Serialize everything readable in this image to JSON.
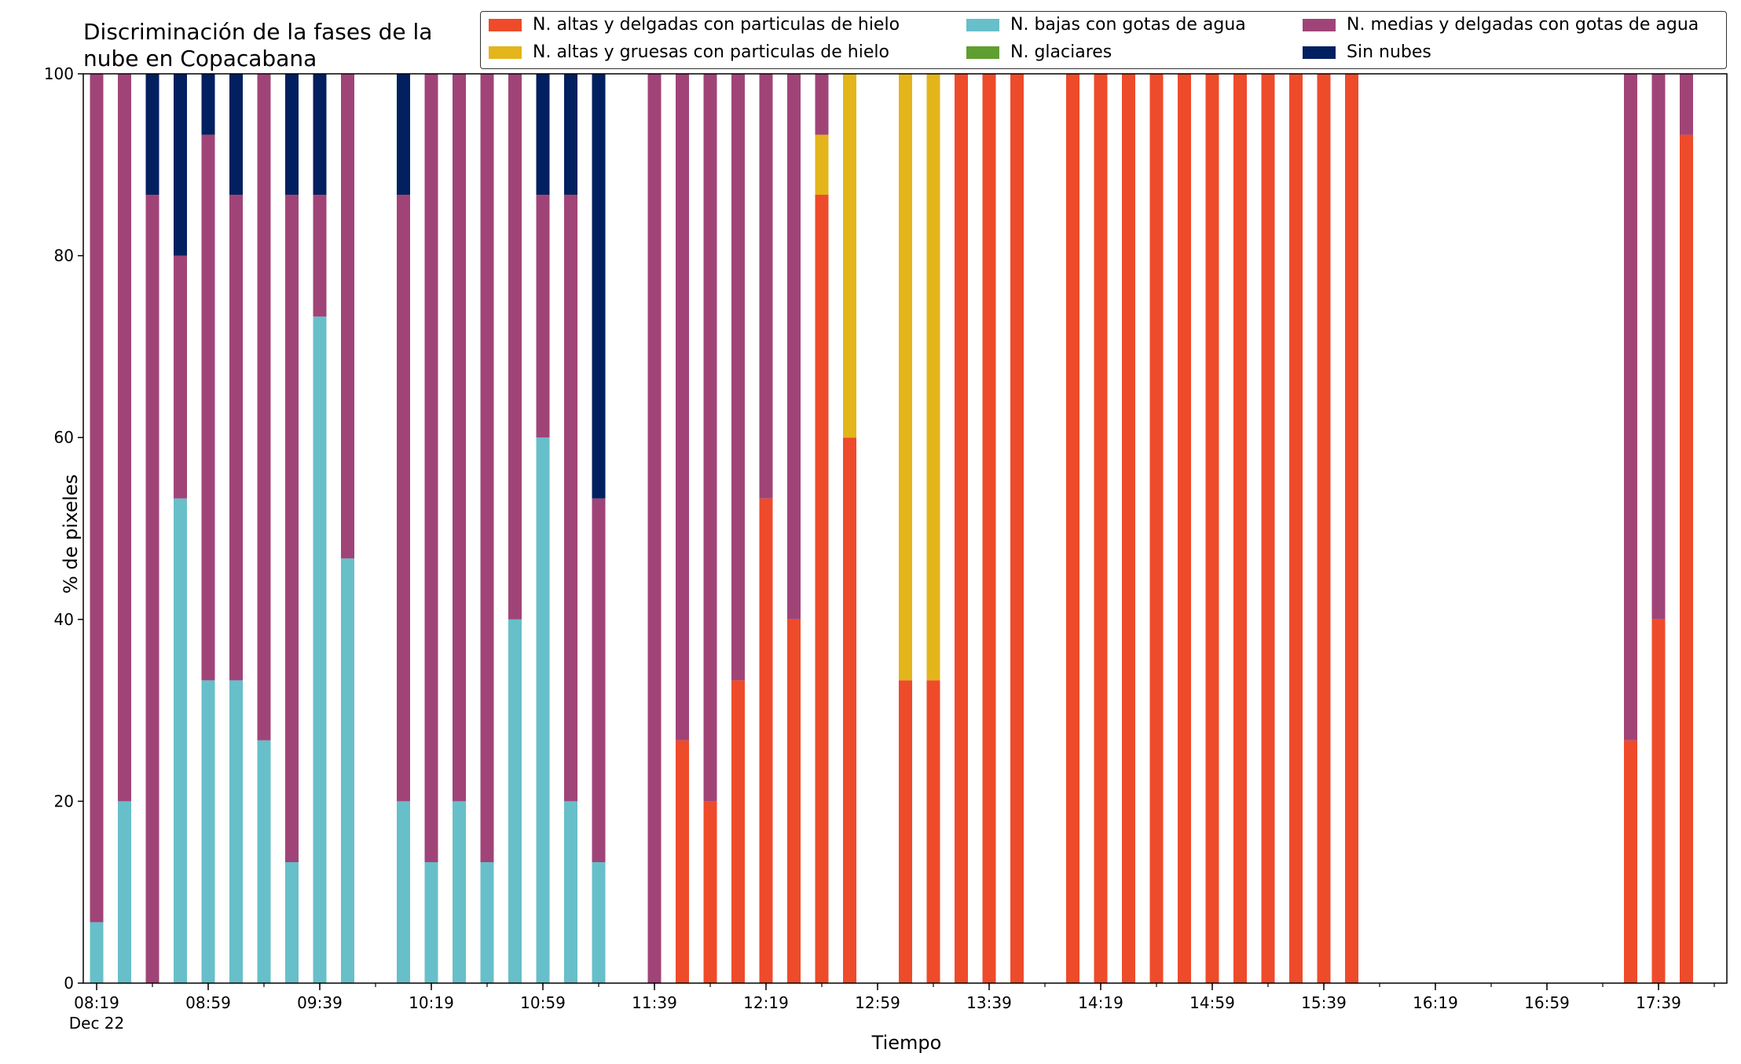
{
  "chart_data": {
    "type": "bar",
    "stacked": true,
    "title": "Discriminación de la fases de la\nnube en Copacabana",
    "xlabel": "Tiempo",
    "ylabel": "% de pixeles",
    "ylim": [
      0,
      100
    ],
    "yticks": [
      0,
      20,
      40,
      60,
      80,
      100
    ],
    "xticks": [
      "08:19",
      "08:59",
      "09:39",
      "10:19",
      "10:59",
      "11:39",
      "12:19",
      "12:59",
      "13:39",
      "14:19",
      "14:59",
      "15:39",
      "16:19",
      "16:59",
      "17:39"
    ],
    "x_date_label": "Dec 22",
    "grid": false,
    "legend_position": "top-right",
    "legend": [
      {
        "name": "N. altas y delgadas con particulas de hielo",
        "color": "#ee4b2b"
      },
      {
        "name": "N. altas y gruesas con particulas de hielo",
        "color": "#e3b51b"
      },
      {
        "name": "N. bajas con gotas de agua",
        "color": "#67bfc9"
      },
      {
        "name": "N. glaciares",
        "color": "#5f9e31"
      },
      {
        "name": "N. medias y delgadas con gotas de agua",
        "color": "#a04478"
      },
      {
        "name": "Sin nubes",
        "color": "#02205f"
      }
    ],
    "categories": [
      "08:19",
      "08:29",
      "08:39",
      "08:49",
      "08:59",
      "09:09",
      "09:19",
      "09:29",
      "09:39",
      "09:49",
      "09:59",
      "10:09",
      "10:19",
      "10:29",
      "10:39",
      "10:49",
      "10:59",
      "11:09",
      "11:19",
      "11:29",
      "11:39",
      "11:49",
      "11:59",
      "12:09",
      "12:19",
      "12:29",
      "12:39",
      "12:49",
      "12:59",
      "13:09",
      "13:19",
      "13:29",
      "13:39",
      "13:49",
      "13:59",
      "14:09",
      "14:19",
      "14:29",
      "14:39",
      "14:49",
      "14:59",
      "15:09",
      "15:19",
      "15:29",
      "15:39",
      "15:49",
      "15:59",
      "16:09",
      "16:19",
      "16:29",
      "16:39",
      "16:49",
      "16:59",
      "17:09",
      "17:19",
      "17:29",
      "17:39",
      "17:49"
    ],
    "series": [
      {
        "name": "N. altas y delgadas con particulas de hielo",
        "values": [
          0,
          0,
          0,
          0,
          0,
          0,
          0,
          0,
          0,
          0,
          0,
          0,
          0,
          0,
          0,
          0,
          0,
          0,
          0,
          0,
          0,
          26.7,
          20,
          33.3,
          53.3,
          40,
          86.7,
          60,
          0,
          33.3,
          33.3,
          100,
          100,
          100,
          0,
          100,
          100,
          100,
          100,
          100,
          100,
          100,
          100,
          100,
          100,
          100,
          0,
          0,
          0,
          0,
          0,
          0,
          0,
          0,
          0,
          26.7,
          40,
          93.3
        ]
      },
      {
        "name": "N. altas y gruesas con particulas de hielo",
        "values": [
          0,
          0,
          0,
          0,
          0,
          0,
          0,
          0,
          0,
          0,
          0,
          0,
          0,
          0,
          0,
          0,
          0,
          0,
          0,
          0,
          0,
          0,
          0,
          0,
          0,
          0,
          6.6,
          40,
          0,
          66.7,
          66.7,
          0,
          0,
          0,
          0,
          0,
          0,
          0,
          0,
          0,
          0,
          0,
          0,
          0,
          0,
          0,
          0,
          0,
          0,
          0,
          0,
          0,
          0,
          0,
          0,
          0,
          0,
          0
        ]
      },
      {
        "name": "N. bajas con gotas de agua",
        "values": [
          6.7,
          20,
          0,
          53.3,
          33.3,
          33.3,
          26.7,
          13.3,
          73.3,
          46.7,
          0,
          20,
          13.3,
          20,
          13.3,
          40,
          60,
          20,
          13.3,
          0,
          0,
          0,
          0,
          0,
          0,
          0,
          0,
          0,
          0,
          0,
          0,
          0,
          0,
          0,
          0,
          0,
          0,
          0,
          0,
          0,
          0,
          0,
          0,
          0,
          0,
          0,
          0,
          0,
          0,
          0,
          0,
          0,
          0,
          0,
          0,
          0,
          0,
          0
        ]
      },
      {
        "name": "N. glaciares",
        "values": [
          0,
          0,
          0,
          0,
          0,
          0,
          0,
          0,
          0,
          0,
          0,
          0,
          0,
          0,
          0,
          0,
          0,
          0,
          0,
          0,
          0,
          0,
          0,
          0,
          0,
          0,
          0,
          0,
          0,
          0,
          0,
          0,
          0,
          0,
          0,
          0,
          0,
          0,
          0,
          0,
          0,
          0,
          0,
          0,
          0,
          0,
          0,
          0,
          0,
          0,
          0,
          0,
          0,
          0,
          0,
          0,
          0,
          0
        ]
      },
      {
        "name": "N. medias y delgadas con gotas de agua",
        "values": [
          93.3,
          80,
          86.7,
          26.7,
          60,
          53.4,
          73.3,
          73.4,
          13.4,
          53.3,
          0,
          66.7,
          86.7,
          80,
          86.7,
          60,
          26.7,
          66.7,
          40,
          0,
          100,
          73.3,
          80,
          66.7,
          46.7,
          60,
          6.7,
          0,
          0,
          0,
          0,
          0,
          0,
          0,
          0,
          0,
          0,
          0,
          0,
          0,
          0,
          0,
          0,
          0,
          0,
          0,
          0,
          0,
          0,
          0,
          0,
          0,
          0,
          0,
          0,
          73.3,
          60,
          6.7
        ]
      },
      {
        "name": "Sin nubes",
        "values": [
          0,
          0,
          13.3,
          20,
          6.7,
          13.3,
          0,
          13.3,
          13.3,
          0,
          0,
          13.3,
          0,
          0,
          0,
          0,
          13.3,
          13.3,
          46.7,
          0,
          0,
          0,
          0,
          0,
          0,
          0,
          0,
          0,
          0,
          0,
          0,
          0,
          0,
          0,
          0,
          0,
          0,
          0,
          0,
          0,
          0,
          0,
          0,
          0,
          0,
          0,
          0,
          0,
          0,
          0,
          0,
          0,
          0,
          0,
          0,
          0,
          0,
          0
        ]
      }
    ]
  }
}
